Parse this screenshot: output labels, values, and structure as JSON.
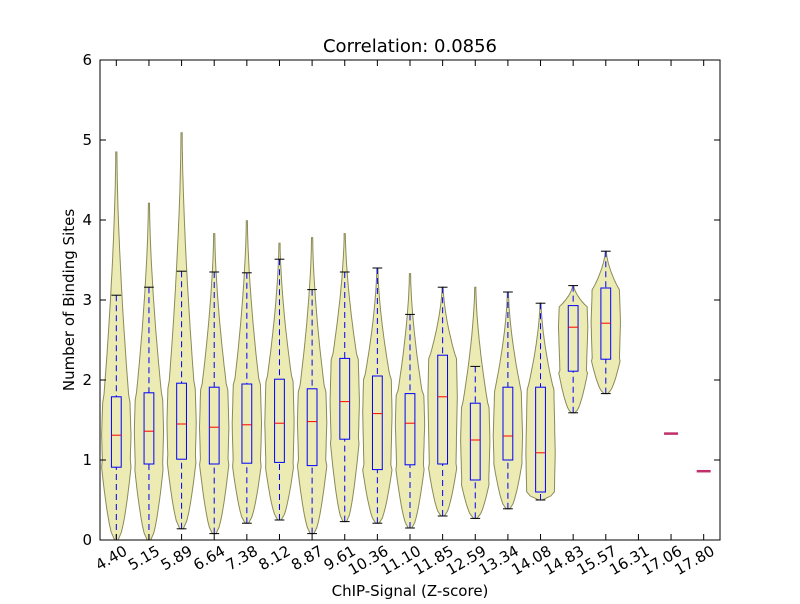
{
  "chart_data": {
    "type": "violin-box",
    "title": "Correlation: 0.0856",
    "x_label": "ChIP-Signal (Z-score)",
    "y_label": "Number of Binding Sites",
    "categories": [
      "4.40",
      "5.15",
      "5.89",
      "6.64",
      "7.38",
      "8.12",
      "8.87",
      "9.61",
      "10.36",
      "11.10",
      "11.85",
      "12.59",
      "13.34",
      "14.08",
      "14.83",
      "15.57",
      "16.31",
      "17.06",
      "17.80"
    ],
    "whisker_low": [
      0,
      0,
      0.14,
      0.08,
      0.21,
      0.25,
      0.08,
      0.23,
      0.21,
      0.15,
      0.3,
      0.27,
      0.39,
      0.5,
      1.59,
      1.83,
      null,
      1.33,
      0.86
    ],
    "q1": [
      0.91,
      0.95,
      1.01,
      0.95,
      0.96,
      0.97,
      0.93,
      1.26,
      0.88,
      0.94,
      0.95,
      0.75,
      1.0,
      0.6,
      2.11,
      2.26,
      null,
      1.33,
      0.86
    ],
    "median": [
      1.31,
      1.36,
      1.45,
      1.41,
      1.44,
      1.46,
      1.48,
      1.73,
      1.58,
      1.46,
      1.79,
      1.25,
      1.3,
      1.09,
      2.66,
      2.71,
      null,
      1.33,
      0.86
    ],
    "q3": [
      1.79,
      1.84,
      1.96,
      1.91,
      1.95,
      2.01,
      1.89,
      2.27,
      2.05,
      1.83,
      2.31,
      1.71,
      1.91,
      1.91,
      2.93,
      3.15,
      null,
      1.33,
      0.86
    ],
    "whisker_high": [
      3.06,
      3.16,
      3.36,
      3.35,
      3.34,
      3.51,
      3.13,
      3.35,
      3.4,
      2.82,
      3.16,
      2.17,
      3.1,
      2.96,
      3.18,
      3.61,
      null,
      1.33,
      0.86
    ],
    "violin_min": [
      0,
      0,
      0.14,
      0.08,
      0.21,
      0.25,
      0.08,
      0.23,
      0.21,
      0.15,
      0.3,
      0.27,
      0.39,
      0.5,
      1.59,
      1.83,
      null,
      1.33,
      0.86
    ],
    "violin_max": [
      4.85,
      4.21,
      5.09,
      3.83,
      3.99,
      3.71,
      3.78,
      3.83,
      3.4,
      3.33,
      3.16,
      3.16,
      3.1,
      2.96,
      3.18,
      3.61,
      null,
      1.33,
      0.86
    ],
    "violin_color": "#e6e6a0",
    "box_color": "#0000ff",
    "median_color": "#ff0000",
    "single_color": "#c0306a",
    "ylim": [
      0,
      6
    ],
    "yticks": [
      0,
      1,
      2,
      3,
      4,
      5,
      6
    ],
    "grid": false
  }
}
